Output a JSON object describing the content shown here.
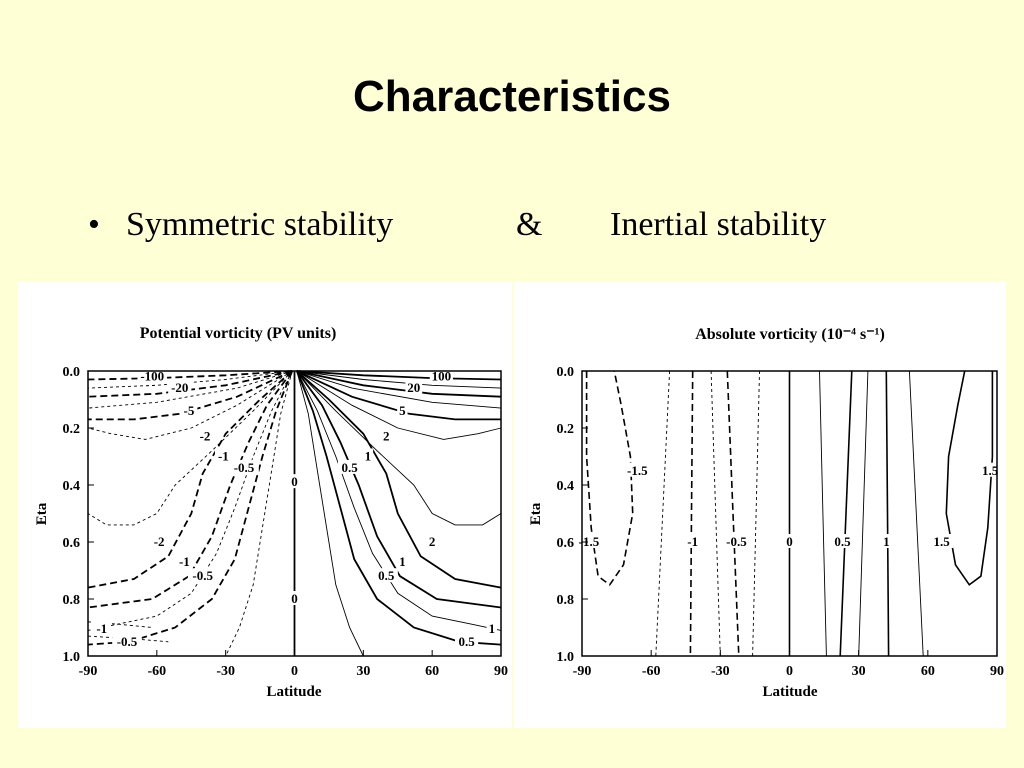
{
  "slide": {
    "title": "Characteristics",
    "bullet_marker": "•",
    "bullet_left": "Symmetric stability",
    "bullet_amp": "&",
    "bullet_right": "Inertial stability"
  },
  "chart_data": [
    {
      "type": "contour",
      "title": "Potential vorticity (PV units)",
      "xlabel": "Latitude",
      "ylabel": "Eta",
      "xlim": [
        -90,
        90
      ],
      "ylim": [
        1.0,
        0.0
      ],
      "xticks": [
        "-90",
        "-60",
        "-30",
        "0",
        "30",
        "60",
        "90"
      ],
      "yticks": [
        "0.0",
        "0.2",
        "0.4",
        "0.6",
        "0.8",
        "1.0"
      ],
      "contour_levels": [
        -100,
        -20,
        -5,
        -2,
        -1,
        -0.5,
        0,
        0.5,
        1,
        2,
        5,
        20,
        100
      ],
      "negative_contours_dashed": true,
      "contour_labels": [
        {
          "text": "-100",
          "lat": -62,
          "eta": 0.02
        },
        {
          "text": "-20",
          "lat": -50,
          "eta": 0.06
        },
        {
          "text": "-5",
          "lat": -46,
          "eta": 0.14
        },
        {
          "text": "-2",
          "lat": -39,
          "eta": 0.23
        },
        {
          "text": "-1",
          "lat": -31,
          "eta": 0.3
        },
        {
          "text": "-0.5",
          "lat": -22,
          "eta": 0.34
        },
        {
          "text": "0",
          "lat": 0,
          "eta": 0.39
        },
        {
          "text": "0.5",
          "lat": 24,
          "eta": 0.34
        },
        {
          "text": "1",
          "lat": 32,
          "eta": 0.3
        },
        {
          "text": "2",
          "lat": 40,
          "eta": 0.23
        },
        {
          "text": "5",
          "lat": 47,
          "eta": 0.14
        },
        {
          "text": "20",
          "lat": 52,
          "eta": 0.06
        },
        {
          "text": "100",
          "lat": 64,
          "eta": 0.02
        },
        {
          "text": "-2",
          "lat": -59,
          "eta": 0.6
        },
        {
          "text": "-1",
          "lat": -48,
          "eta": 0.67
        },
        {
          "text": "-0.5",
          "lat": -40,
          "eta": 0.72
        },
        {
          "text": "0",
          "lat": 0,
          "eta": 0.8
        },
        {
          "text": "0.5",
          "lat": 40,
          "eta": 0.72
        },
        {
          "text": "1",
          "lat": 47,
          "eta": 0.67
        },
        {
          "text": "2",
          "lat": 60,
          "eta": 0.6
        },
        {
          "text": "-1",
          "lat": -84,
          "eta": 0.905
        },
        {
          "text": "-0.5",
          "lat": -73,
          "eta": 0.95
        },
        {
          "text": "1",
          "lat": 86,
          "eta": 0.905
        },
        {
          "text": "0.5",
          "lat": 75,
          "eta": 0.95
        }
      ]
    },
    {
      "type": "contour",
      "title": "Absolute vorticity (10⁻⁴ s⁻¹)",
      "xlabel": "Latitude",
      "ylabel": "Eta",
      "xlim": [
        -90,
        90
      ],
      "ylim": [
        1.0,
        0.0
      ],
      "xticks": [
        "-90",
        "-60",
        "-30",
        "0",
        "30",
        "60",
        "90"
      ],
      "yticks": [
        "0.0",
        "0.2",
        "0.4",
        "0.6",
        "0.8",
        "1.0"
      ],
      "contour_levels": [
        -1.5,
        -1,
        -0.5,
        0,
        0.5,
        1,
        1.5
      ],
      "negative_contours_dashed": true,
      "contour_labels": [
        {
          "text": "-1.5",
          "lat": -66,
          "eta": 0.35
        },
        {
          "text": "-1.5",
          "lat": -87,
          "eta": 0.6
        },
        {
          "text": "-1",
          "lat": -42,
          "eta": 0.6
        },
        {
          "text": "-0.5",
          "lat": -23,
          "eta": 0.6
        },
        {
          "text": "0",
          "lat": 0,
          "eta": 0.6
        },
        {
          "text": "0.5",
          "lat": 23,
          "eta": 0.6
        },
        {
          "text": "1",
          "lat": 42,
          "eta": 0.6
        },
        {
          "text": "1.5",
          "lat": 66,
          "eta": 0.6
        },
        {
          "text": "1.5",
          "lat": 87,
          "eta": 0.35
        }
      ]
    }
  ]
}
